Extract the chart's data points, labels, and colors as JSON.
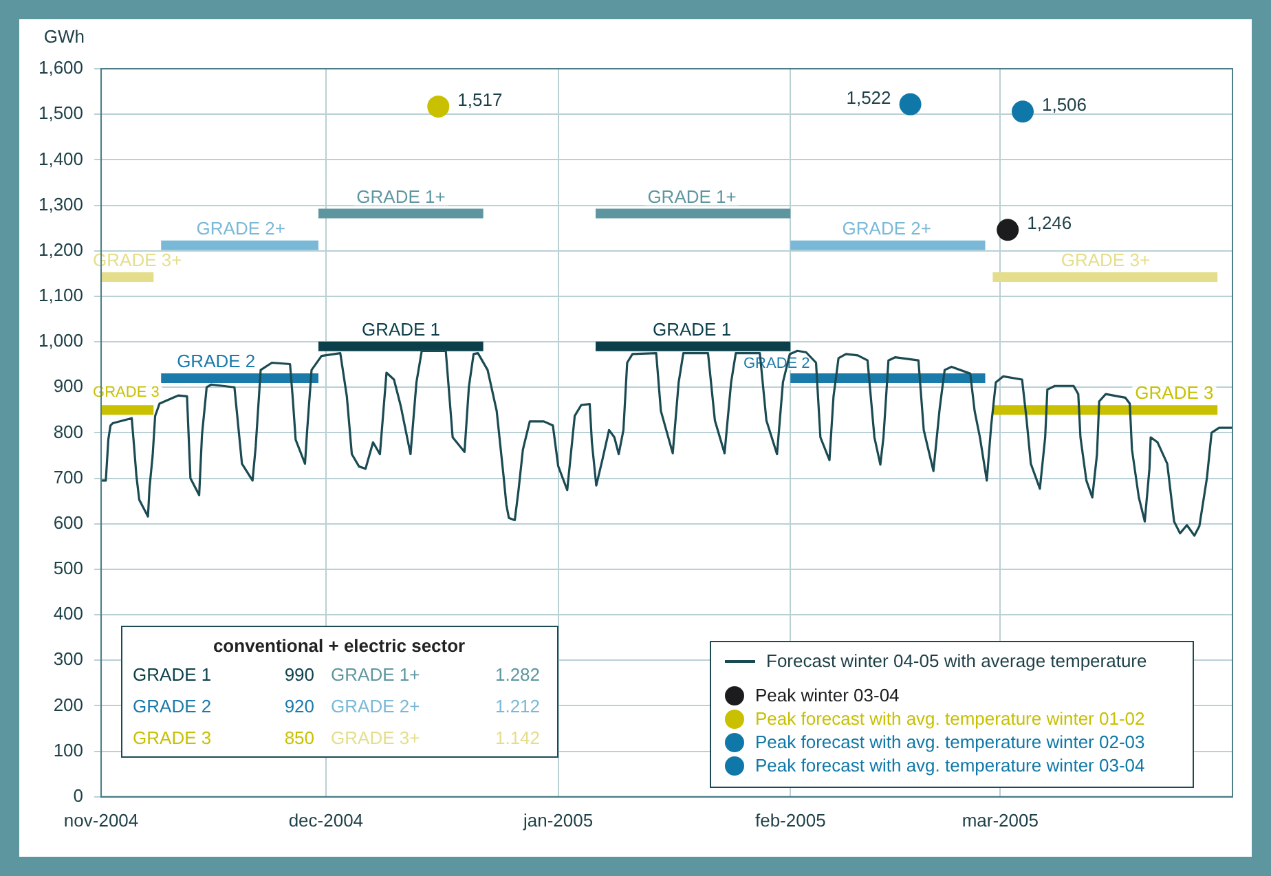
{
  "chart_data": {
    "type": "line",
    "ylabel": "GWh",
    "xlim": [
      "2004-11-01",
      "2005-04-01"
    ],
    "ylim": [
      0,
      1600
    ],
    "xticks": [
      {
        "value": "2004-11-01",
        "label": "nov-2004"
      },
      {
        "value": "2004-12-01",
        "label": "dec-2004"
      },
      {
        "value": "2005-01-01",
        "label": "jan-2005"
      },
      {
        "value": "2005-02-01",
        "label": "feb-2005"
      },
      {
        "value": "2005-03-01",
        "label": "mar-2005"
      }
    ],
    "yticks": [
      0,
      100,
      200,
      300,
      400,
      500,
      600,
      700,
      800,
      900,
      {
        "value": 1000,
        "label": "1,000"
      },
      {
        "value": 1100,
        "label": "1,100"
      },
      {
        "value": 1200,
        "label": "1,200"
      },
      {
        "value": 1300,
        "label": "1,300"
      },
      {
        "value": 1400,
        "label": "1,400"
      },
      {
        "value": 1500,
        "label": "1,500"
      },
      {
        "value": 1600,
        "label": "1,600"
      }
    ],
    "grid": true,
    "legend": "bottom right",
    "series": [
      {
        "name": "Forecast winter 04-05 with average temperature",
        "color": "#1a4a52",
        "x": [
          "2004-11-01T02:00",
          "2004-11-01T15:00",
          "2004-11-01T23:00",
          "2004-11-02T06:00",
          "2004-11-02T13:00",
          "2004-11-05T02:00",
          "2004-11-05T09:00",
          "2004-11-05T17:00",
          "2004-11-06T02:00",
          "2004-11-07T06:00",
          "2004-11-07T11:00",
          "2004-11-07T21:00",
          "2004-11-08T05:00",
          "2004-11-08T19:00",
          "2004-11-11T07:00",
          "2004-11-12T11:00",
          "2004-11-12T22:00",
          "2004-11-14T02:00",
          "2004-11-14T11:00",
          "2004-11-15T02:00",
          "2004-11-15T17:00",
          "2004-11-18T19:00",
          "2004-11-19T19:00",
          "2004-11-21T05:00",
          "2004-11-21T15:00",
          "2004-11-22T07:00",
          "2004-11-23T19:00",
          "2004-11-26T05:00",
          "2004-11-26T14:00",
          "2004-11-26T23:00",
          "2004-11-28T05:00",
          "2004-11-28T12:00",
          "2004-11-29T02:00",
          "2004-11-30T10:00",
          "2004-12-02T22:00",
          "2004-12-03T19:00",
          "2004-12-04T11:00",
          "2004-12-05T10:00",
          "2004-12-06T07:00",
          "2004-12-07T07:00",
          "2004-12-08T05:00",
          "2004-12-09T02:00",
          "2004-12-10T02:00",
          "2004-12-11T00:00",
          "2004-12-12T07:00",
          "2004-12-13T02:00",
          "2004-12-13T19:00",
          "2004-12-17T00:00",
          "2004-12-17T22:00",
          "2004-12-19T12:00",
          "2004-12-20T02:00",
          "2004-12-20T17:00",
          "2004-12-21T07:00",
          "2004-12-22T14:00",
          "2004-12-23T19:00",
          "2004-12-24T17:00",
          "2004-12-25T02:00",
          "2004-12-25T10:00",
          "2004-12-26T05:00",
          "2004-12-26T17:00",
          "2004-12-27T07:00",
          "2004-12-28T05:00",
          "2004-12-30T02:00",
          "2004-12-31T07:00",
          "2005-01-01T00:00",
          "2005-01-02T05:00",
          "2005-01-03T05:00",
          "2005-01-04T02:00",
          "2005-01-05T05:00",
          "2005-01-05T12:00",
          "2005-01-06T02:00",
          "2005-01-06T22:00",
          "2005-01-07T19:00",
          "2005-01-08T12:00",
          "2005-01-09T02:00",
          "2005-01-09T17:00",
          "2005-01-10T05:00",
          "2005-01-10T22:00",
          "2005-01-14T02:00",
          "2005-01-14T17:00",
          "2005-01-16T07:00",
          "2005-01-17T02:00",
          "2005-01-17T17:00",
          "2005-01-21T00:00",
          "2005-01-21T22:00",
          "2005-01-23T05:00",
          "2005-01-24T02:00",
          "2005-01-24T17:00",
          "2005-01-27T22:00",
          "2005-01-28T19:00",
          "2005-01-30T05:00",
          "2005-01-31T00:00",
          "2005-01-31T22:00",
          "2005-02-01T22:00",
          "2005-02-03T02:00",
          "2005-02-04T10:00",
          "2005-02-05T00:00",
          "2005-02-06T05:00",
          "2005-02-06T18:00",
          "2005-02-07T10:00",
          "2005-02-08T10:00",
          "2005-02-10T00:00",
          "2005-02-11T07:00",
          "2005-02-12T05:00",
          "2005-02-13T00:00",
          "2005-02-13T10:00",
          "2005-02-14T02:00",
          "2005-02-15T00:00",
          "2005-02-18T02:00",
          "2005-02-18T19:00",
          "2005-02-20T02:00",
          "2005-02-20T22:00",
          "2005-02-21T14:00",
          "2005-02-22T12:00",
          "2005-02-25T00:00",
          "2005-02-25T14:00",
          "2005-02-26T07:00",
          "2005-02-27T05:00",
          "2005-02-27T19:00",
          "2005-02-28T10:00",
          "2005-03-01T10:00",
          "2005-03-03T22:00",
          "2005-03-04T12:00",
          "2005-03-05T02:00",
          "2005-03-06T07:00",
          "2005-03-07T00:00",
          "2005-03-07T07:00",
          "2005-03-08T07:00",
          "2005-03-10T19:00",
          "2005-03-11T10:00",
          "2005-03-11T17:00",
          "2005-03-12T12:00",
          "2005-03-13T07:00",
          "2005-03-13T22:00",
          "2005-03-14T05:00",
          "2005-03-15T02:00",
          "2005-03-17T17:00",
          "2005-03-18T07:00",
          "2005-03-18T14:00",
          "2005-03-19T12:00",
          "2005-03-20T07:00",
          "2005-03-20T22:00",
          "2005-03-21T02:00",
          "2005-03-22T00:00",
          "2005-03-23T07:00",
          "2005-03-24T05:00",
          "2005-03-25T00:00",
          "2005-03-25T22:00",
          "2005-03-26T22:00",
          "2005-03-27T14:00",
          "2005-03-28T14:00",
          "2005-03-29T05:00",
          "2005-03-30T05:00",
          "2005-04-01T00:00"
        ],
        "values": [
          695,
          695,
          785,
          816,
          821,
          832,
          774,
          705,
          653,
          616,
          680,
          750,
          837,
          864,
          882,
          880,
          700,
          663,
          795,
          900,
          906,
          900,
          732,
          695,
          769,
          938,
          954,
          951,
          874,
          785,
          732,
          806,
          938,
          969,
          975,
          880,
          753,
          726,
          721,
          779,
          753,
          932,
          917,
          858,
          753,
          911,
          980,
          980,
          790,
          758,
          901,
          973,
          975,
          938,
          848,
          705,
          642,
          613,
          608,
          674,
          763,
          825,
          825,
          816,
          727,
          674,
          837,
          861,
          863,
          779,
          684,
          742,
          806,
          790,
          753,
          806,
          954,
          973,
          975,
          848,
          755,
          911,
          975,
          975,
          827,
          755,
          911,
          975,
          975,
          827,
          753,
          911,
          973,
          980,
          977,
          954,
          790,
          740,
          880,
          964,
          973,
          970,
          959,
          790,
          730,
          790,
          959,
          966,
          959,
          806,
          716,
          853,
          938,
          945,
          930,
          848,
          790,
          695,
          816,
          911,
          924,
          917,
          832,
          732,
          677,
          790,
          895,
          903,
          903,
          885,
          790,
          695,
          658,
          753,
          869,
          885,
          877,
          864,
          763,
          658,
          605,
          721,
          790,
          779,
          732,
          605,
          579,
          597,
          574,
          595,
          700,
          800,
          811,
          811
        ]
      },
      {
        "name": "GRADE 1",
        "color": "#0b3f4a",
        "x": [
          "2004-11-30",
          "2004-12-22",
          "2004-12-30",
          "2005-01-06",
          "2005-02-01"
        ],
        "values": [
          990,
          990,
          null,
          990,
          990
        ]
      },
      {
        "name": "GRADE 2",
        "color": "#1a7aaa",
        "x": [
          "2004-11-09",
          "2004-11-30",
          "2005-01-15",
          "2005-02-01",
          "2005-02-27"
        ],
        "values": [
          920,
          920,
          null,
          920,
          920
        ]
      },
      {
        "name": "GRADE 3",
        "color": "#c8c000",
        "x": [
          "2004-11-01",
          "2004-11-08",
          "2005-01-15",
          "2005-02-28",
          "2005-03-30"
        ],
        "values": [
          850,
          850,
          null,
          850,
          850
        ]
      },
      {
        "name": "GRADE 1+",
        "color": "#5e96a0",
        "x": [
          "2004-11-30",
          "2004-12-22",
          "2004-12-30",
          "2005-01-06",
          "2005-02-01"
        ],
        "values": [
          1282,
          1282,
          null,
          1282,
          1282
        ]
      },
      {
        "name": "GRADE 2+",
        "color": "#7ab8d8",
        "x": [
          "2004-11-09",
          "2004-11-30",
          "2005-01-15",
          "2005-02-01",
          "2005-02-27"
        ],
        "values": [
          1212,
          1212,
          null,
          1212,
          1212
        ]
      },
      {
        "name": "GRADE 3+",
        "color": "#e4de8c",
        "x": [
          "2004-11-01",
          "2004-11-08",
          "2005-01-15",
          "2005-02-28",
          "2005-03-30"
        ],
        "values": [
          1142,
          1142,
          null,
          1142,
          1142
        ]
      },
      {
        "name": "Peak winter 03-04",
        "type": "scatter",
        "marker": "circle",
        "color": "#1c1c1e",
        "x": [
          "2005-03-02"
        ],
        "values": [
          1246
        ],
        "value_labels": [
          "1,246"
        ]
      },
      {
        "name": "Peak forecast with avg. temperature winter 01-02",
        "type": "scatter",
        "marker": "circle",
        "color": "#c8c000",
        "x": [
          "2004-12-16"
        ],
        "values": [
          1517
        ],
        "value_labels": [
          "1,517"
        ]
      },
      {
        "name": "Peak forecast with avg. temperature winter 02-03",
        "type": "scatter",
        "marker": "circle",
        "color": "#0f78a8",
        "x": [
          "2005-02-17"
        ],
        "values": [
          1522
        ],
        "value_labels": [
          "1,522"
        ]
      },
      {
        "name": "Peak forecast with avg. temperature winter 03-04",
        "type": "scatter",
        "marker": "circle",
        "color": "#0f78a8",
        "x": [
          "2005-03-04"
        ],
        "values": [
          1506
        ],
        "value_labels": [
          "1,506"
        ]
      }
    ],
    "annotations": [
      "conventional + electric sector",
      "GRADE 1",
      "990",
      "GRADE 1+",
      "1.282",
      "GRADE 2",
      "920",
      "GRADE 2+",
      "1.212",
      "GRADE 3",
      "850",
      "GRADE 3+",
      "1.142"
    ]
  }
}
